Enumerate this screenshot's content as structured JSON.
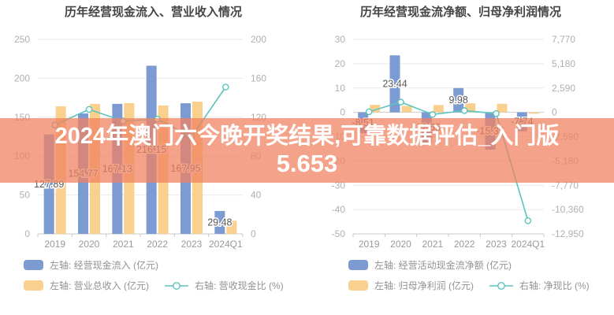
{
  "banner": {
    "line1": "2024年澳门六今晚开奖结果,可靠数据评估_入门版",
    "line2": "5.653",
    "bg_color": "rgba(240,130,96,0.74)",
    "text_color": "#ffffff"
  },
  "colors": {
    "bar_blue": "#7D9BD3",
    "bar_orange": "#FAD08F",
    "line_teal": "#5AC4BE",
    "grid": "#e9e9e9",
    "axis": "#c9c9c9"
  },
  "chart_data": [
    {
      "type": "bar",
      "title": "历年经营现金流入、营业收入情况",
      "categories": [
        "2019",
        "2020",
        "2021",
        "2022",
        "2023",
        "2024Q1"
      ],
      "left_axis": {
        "min": 0,
        "max": 250,
        "tick_values": [
          250,
          200,
          150,
          100,
          50,
          0
        ],
        "tick_labels": [
          "250",
          "200",
          "150",
          "100",
          "50",
          "0"
        ]
      },
      "right_axis": {
        "min": 0,
        "max": 200,
        "tick_labels": [
          "200",
          "160",
          "120",
          "80",
          "40",
          "0"
        ]
      },
      "series": [
        {
          "name": "左轴: 经营现金流入 (亿元)",
          "kind": "bar",
          "axis": "left",
          "color": "#7D9BD3",
          "values": [
            127.89,
            154.77,
            167.13,
            216.15,
            167.95,
            29.48
          ],
          "labels": [
            "127.89",
            "154.77",
            "167.13",
            "216.15",
            "167.95",
            "29.48"
          ]
        },
        {
          "name": "左轴: 营业总收入 (亿元)",
          "kind": "bar",
          "axis": "left",
          "color": "#FAD08F",
          "values": [
            164,
            167,
            168,
            165,
            170,
            17
          ]
        },
        {
          "name": "右轴: 营收现金比 (%)",
          "kind": "line",
          "axis": "right",
          "color": "#5AC4BE",
          "values": [
            112,
            128,
            116,
            118,
            100,
            151
          ]
        }
      ]
    },
    {
      "type": "bar",
      "title": "历年经营现金流净额、归母净利润情况",
      "categories": [
        "2019",
        "2020",
        "2021",
        "2022",
        "2023",
        "2024Q1"
      ],
      "left_axis": {
        "min": -50,
        "max": 30,
        "tick_values": [
          30,
          20,
          10,
          0,
          -10,
          -20,
          -30,
          -40,
          -50
        ],
        "tick_labels": [
          "30",
          "20",
          "10",
          "0",
          "-10",
          "-20",
          "-30",
          "-40",
          "-50"
        ]
      },
      "right_axis": {
        "min": -12950,
        "max": 7770,
        "tick_labels": [
          "7,770",
          "5,180",
          "2,590",
          "0",
          "-2,590",
          "-5,180",
          "-7,770",
          "-10,360",
          "-12,950"
        ]
      },
      "series": [
        {
          "name": "左轴: 经营活动现金流净额 (亿元)",
          "kind": "bar",
          "axis": "left",
          "color": "#7D9BD3",
          "values": [
            -8.51,
            23.44,
            -12.55,
            9.98,
            -15.35,
            -7.74
          ],
          "labels": [
            "-8.51",
            "23.44",
            "-12.55",
            "9.98",
            "-15.35",
            "-7.74"
          ]
        },
        {
          "name": "左轴: 归母净利润 (亿元)",
          "kind": "bar",
          "axis": "left",
          "color": "#FAD08F",
          "values": [
            3.1,
            2.6,
            3.0,
            3.7,
            3.5,
            -0.6
          ]
        },
        {
          "name": "右轴: 净现比 (%)",
          "kind": "line",
          "axis": "right",
          "color": "#5AC4BE",
          "values": [
            60,
            1090,
            -230,
            180,
            -130,
            -11550
          ]
        }
      ]
    }
  ]
}
